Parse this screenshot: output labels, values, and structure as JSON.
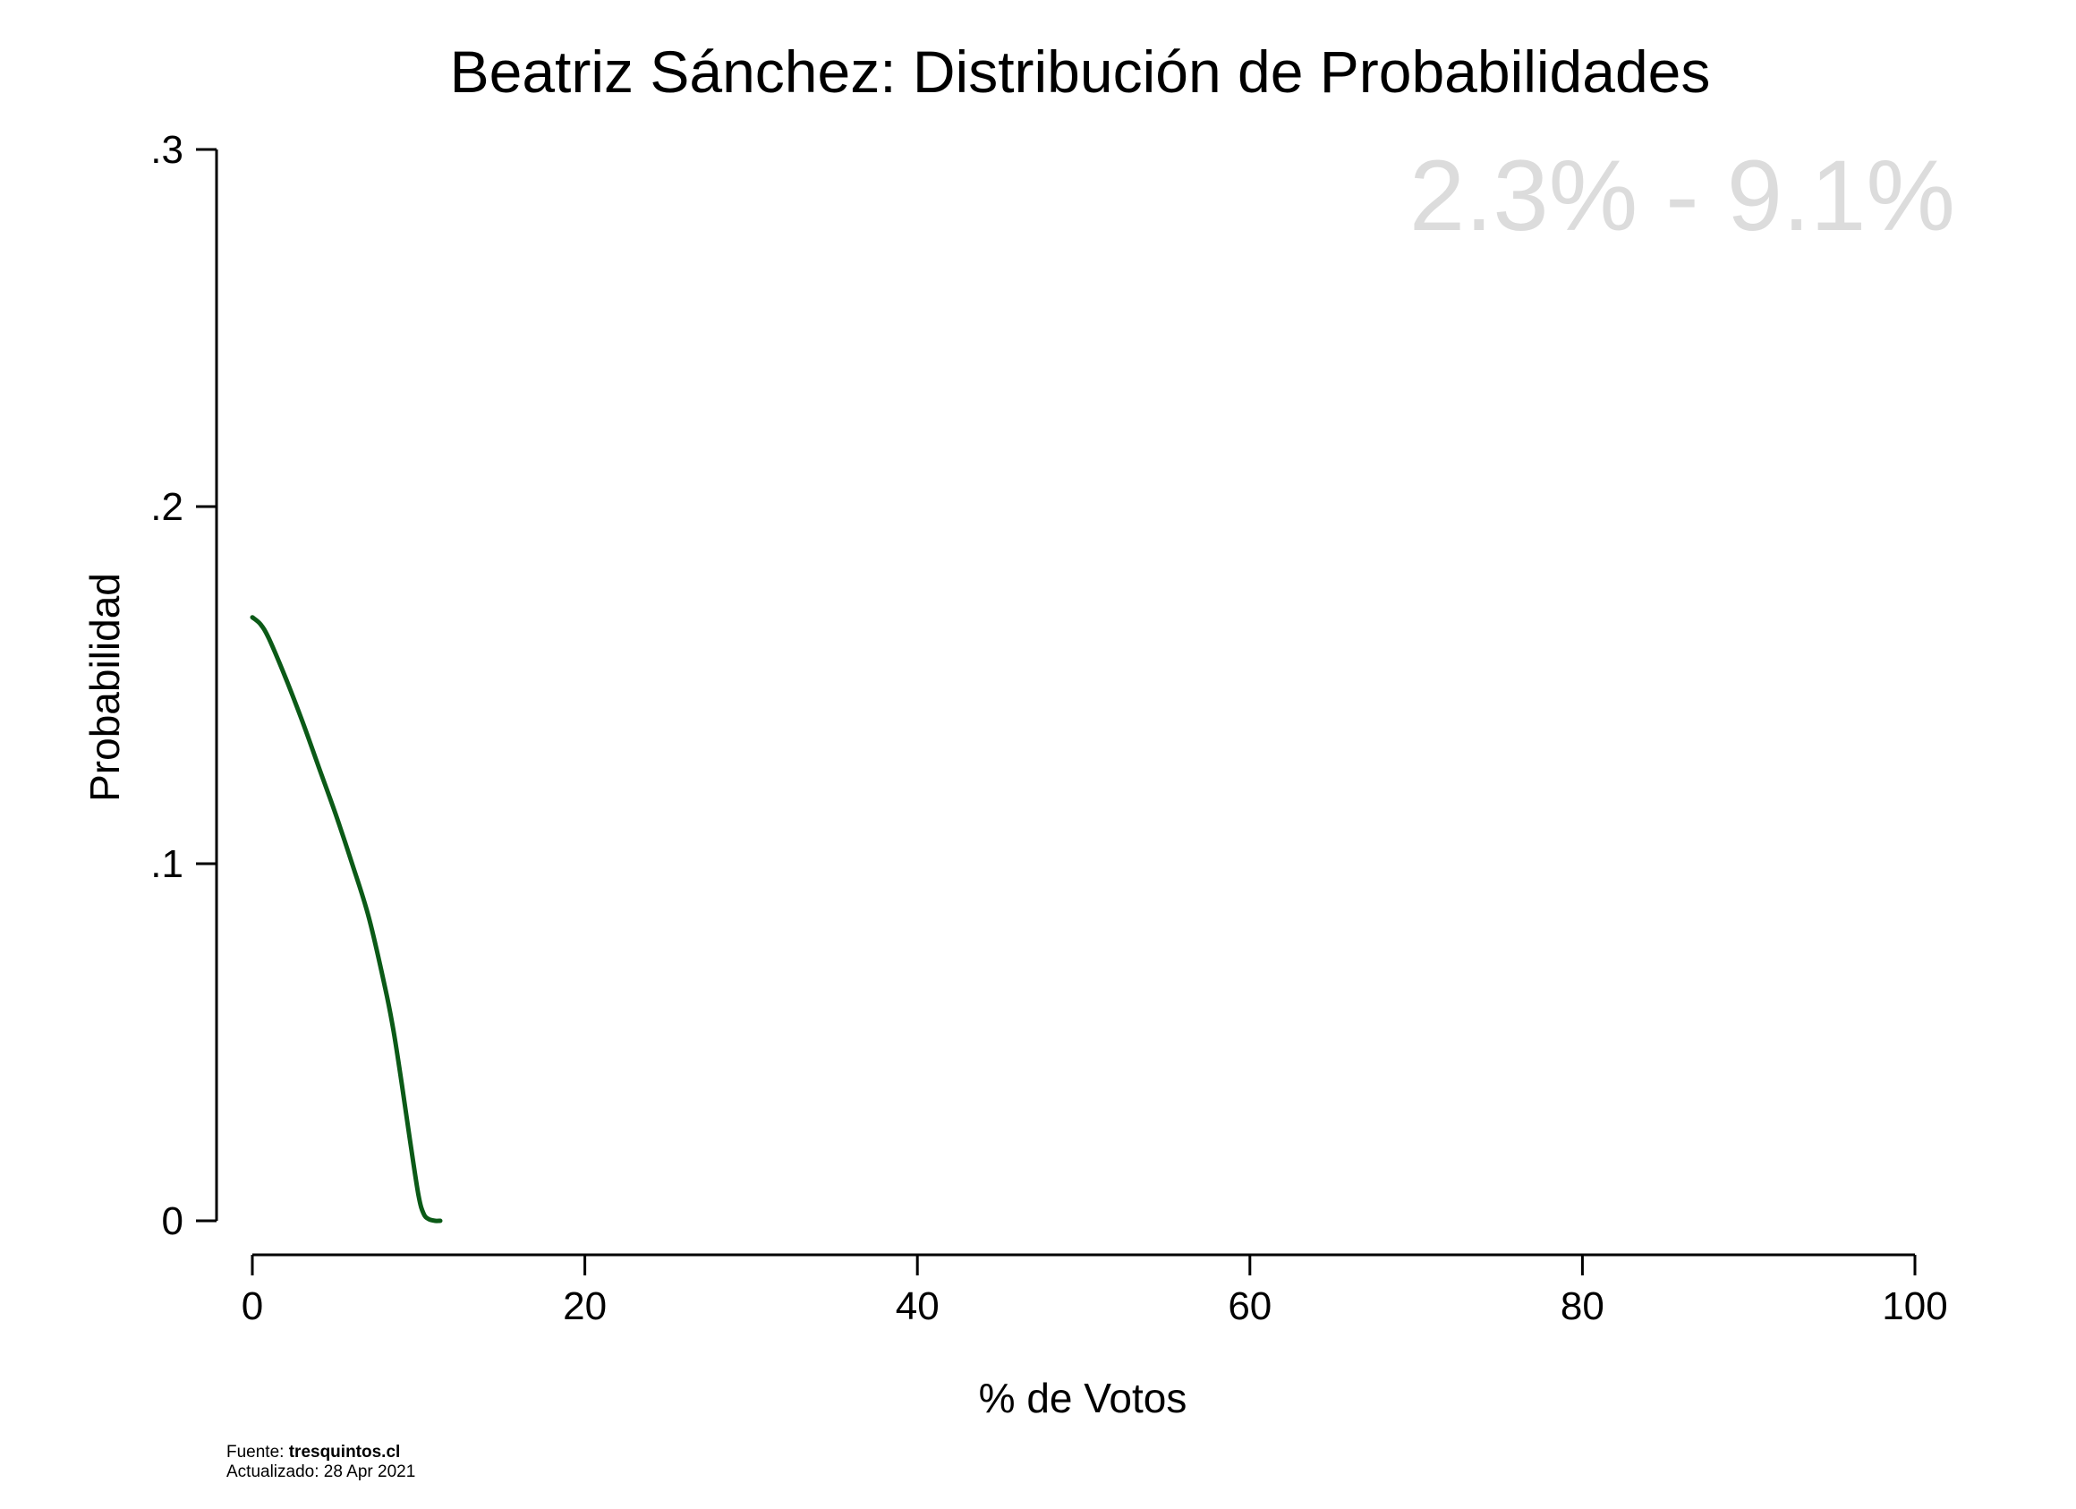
{
  "chart_data": {
    "type": "line",
    "title": "Beatriz Sánchez: Distribución de Probabilidades",
    "xlabel": "% de Votos",
    "ylabel": "Probabilidad",
    "xlim": [
      0,
      100
    ],
    "ylim": [
      0,
      0.3
    ],
    "x_ticks": [
      0,
      20,
      40,
      60,
      80,
      100
    ],
    "x_tick_labels": [
      "0",
      "20",
      "40",
      "60",
      "80",
      "100"
    ],
    "y_ticks": [
      0,
      0.1,
      0.2,
      0.3
    ],
    "y_tick_labels": [
      "0",
      ".1",
      ".2",
      ".3"
    ],
    "grid": false,
    "annotation": "2.3% - 9.1%",
    "series": [
      {
        "color": "#0b5a17",
        "x": [
          0,
          0.5,
          1,
          2,
          3,
          4,
          5,
          6,
          7,
          8,
          8.5,
          9,
          9.5,
          10,
          10.3,
          10.6,
          11,
          11.3
        ],
        "values": [
          0.169,
          0.167,
          0.163,
          0.152,
          0.14,
          0.127,
          0.114,
          0.1,
          0.085,
          0.065,
          0.053,
          0.038,
          0.022,
          0.007,
          0.002,
          0.0005,
          0.0,
          0.0
        ]
      }
    ]
  },
  "footer": {
    "source_prefix": "Fuente: ",
    "source": "tresquintos.cl",
    "updated": "Actualizado: 28 Apr 2021"
  }
}
